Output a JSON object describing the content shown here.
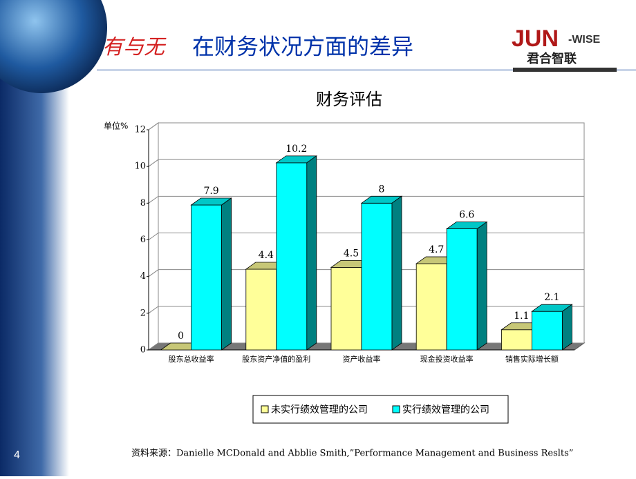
{
  "slide": {
    "title_prefix": "有与无",
    "title": "在财务状况方面的差异",
    "logo_main": "JUN",
    "logo_suffix": "-WISE",
    "logo_cn": "君合智联",
    "page_number": "4",
    "source": "资料来源：Danielle MCDonald and Abblie Smith,”Performance Management and Business Reslts”"
  },
  "chart_data": {
    "type": "bar3d",
    "title": "财务评估",
    "y_label": "单位%",
    "categories": [
      "股东总收益率",
      "股东资产净值的盈利",
      "资产收益率",
      "现金投资收益率",
      "销售实际增长额"
    ],
    "series": [
      {
        "name": "未实行绩效管理的公司",
        "color": "#ffff99",
        "values": [
          0,
          4.4,
          4.5,
          4.7,
          1.1
        ]
      },
      {
        "name": "实行绩效管理的公司",
        "color": "#00ffff",
        "values": [
          7.9,
          10.2,
          8,
          6.6,
          2.1
        ]
      }
    ],
    "ylim": [
      0,
      12
    ],
    "yticks": [
      0,
      2,
      4,
      6,
      8,
      10,
      12
    ],
    "grid": true,
    "legend": "bottom"
  }
}
